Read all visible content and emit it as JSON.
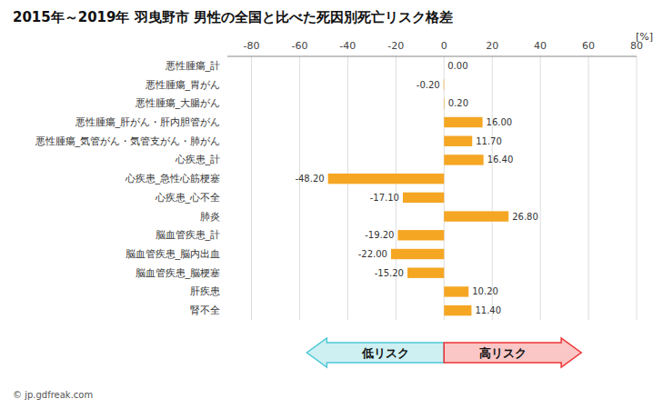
{
  "chart_data": {
    "type": "bar",
    "orientation": "horizontal",
    "title": "2015年～2019年 羽曳野市 男性の全国と比べた死因別死亡リスク格差",
    "xlabel": "[%]",
    "categories": [
      "悪性腫瘍_計",
      "悪性腫瘍_胃がん",
      "悪性腫瘍_大腸がん",
      "悪性腫瘍_肝がん・肝内胆管がん",
      "悪性腫瘍_気管がん・気管支がん・肺がん",
      "心疾患_計",
      "心疾患_急性心筋梗塞",
      "心疾患_心不全",
      "肺炎",
      "脳血管疾患_計",
      "脳血管疾患_脳内出血",
      "脳血管疾患_脳梗塞",
      "肝疾患",
      "腎不全"
    ],
    "values": [
      0.0,
      -0.2,
      0.2,
      16.0,
      11.7,
      16.4,
      -48.2,
      -17.1,
      26.8,
      -19.2,
      -22.0,
      -15.2,
      10.2,
      11.4
    ],
    "value_labels": [
      "0.00",
      "-0.20",
      "0.20",
      "16.00",
      "11.70",
      "16.40",
      "-48.20",
      "-17.10",
      "26.80",
      "-19.20",
      "-22.00",
      "-15.20",
      "10.20",
      "11.40"
    ],
    "data_labels": true,
    "color": "#F5A623",
    "xlim": [
      -90,
      80
    ],
    "xticks": [
      -80,
      -60,
      -40,
      -20,
      0,
      20,
      40,
      60,
      80
    ],
    "grid": true,
    "annotations": [
      {
        "text": "低リスク",
        "x": [
          0,
          -57
        ],
        "color": "#4EC8D5"
      },
      {
        "text": "高リスク",
        "x": [
          0,
          57
        ],
        "color": "#EE3333"
      },
      {
        "text": "© jp.gdfreak.com"
      }
    ]
  }
}
